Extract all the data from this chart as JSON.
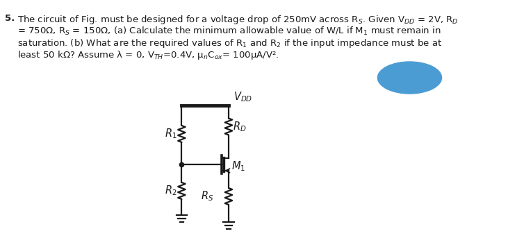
{
  "bg_color": "#ffffff",
  "text_color": "#1a1a1a",
  "circuit_color": "#1a1a1a",
  "blue_color": "#4b9cd3",
  "font_size": 9.5,
  "circuit_font_size": 10.5
}
